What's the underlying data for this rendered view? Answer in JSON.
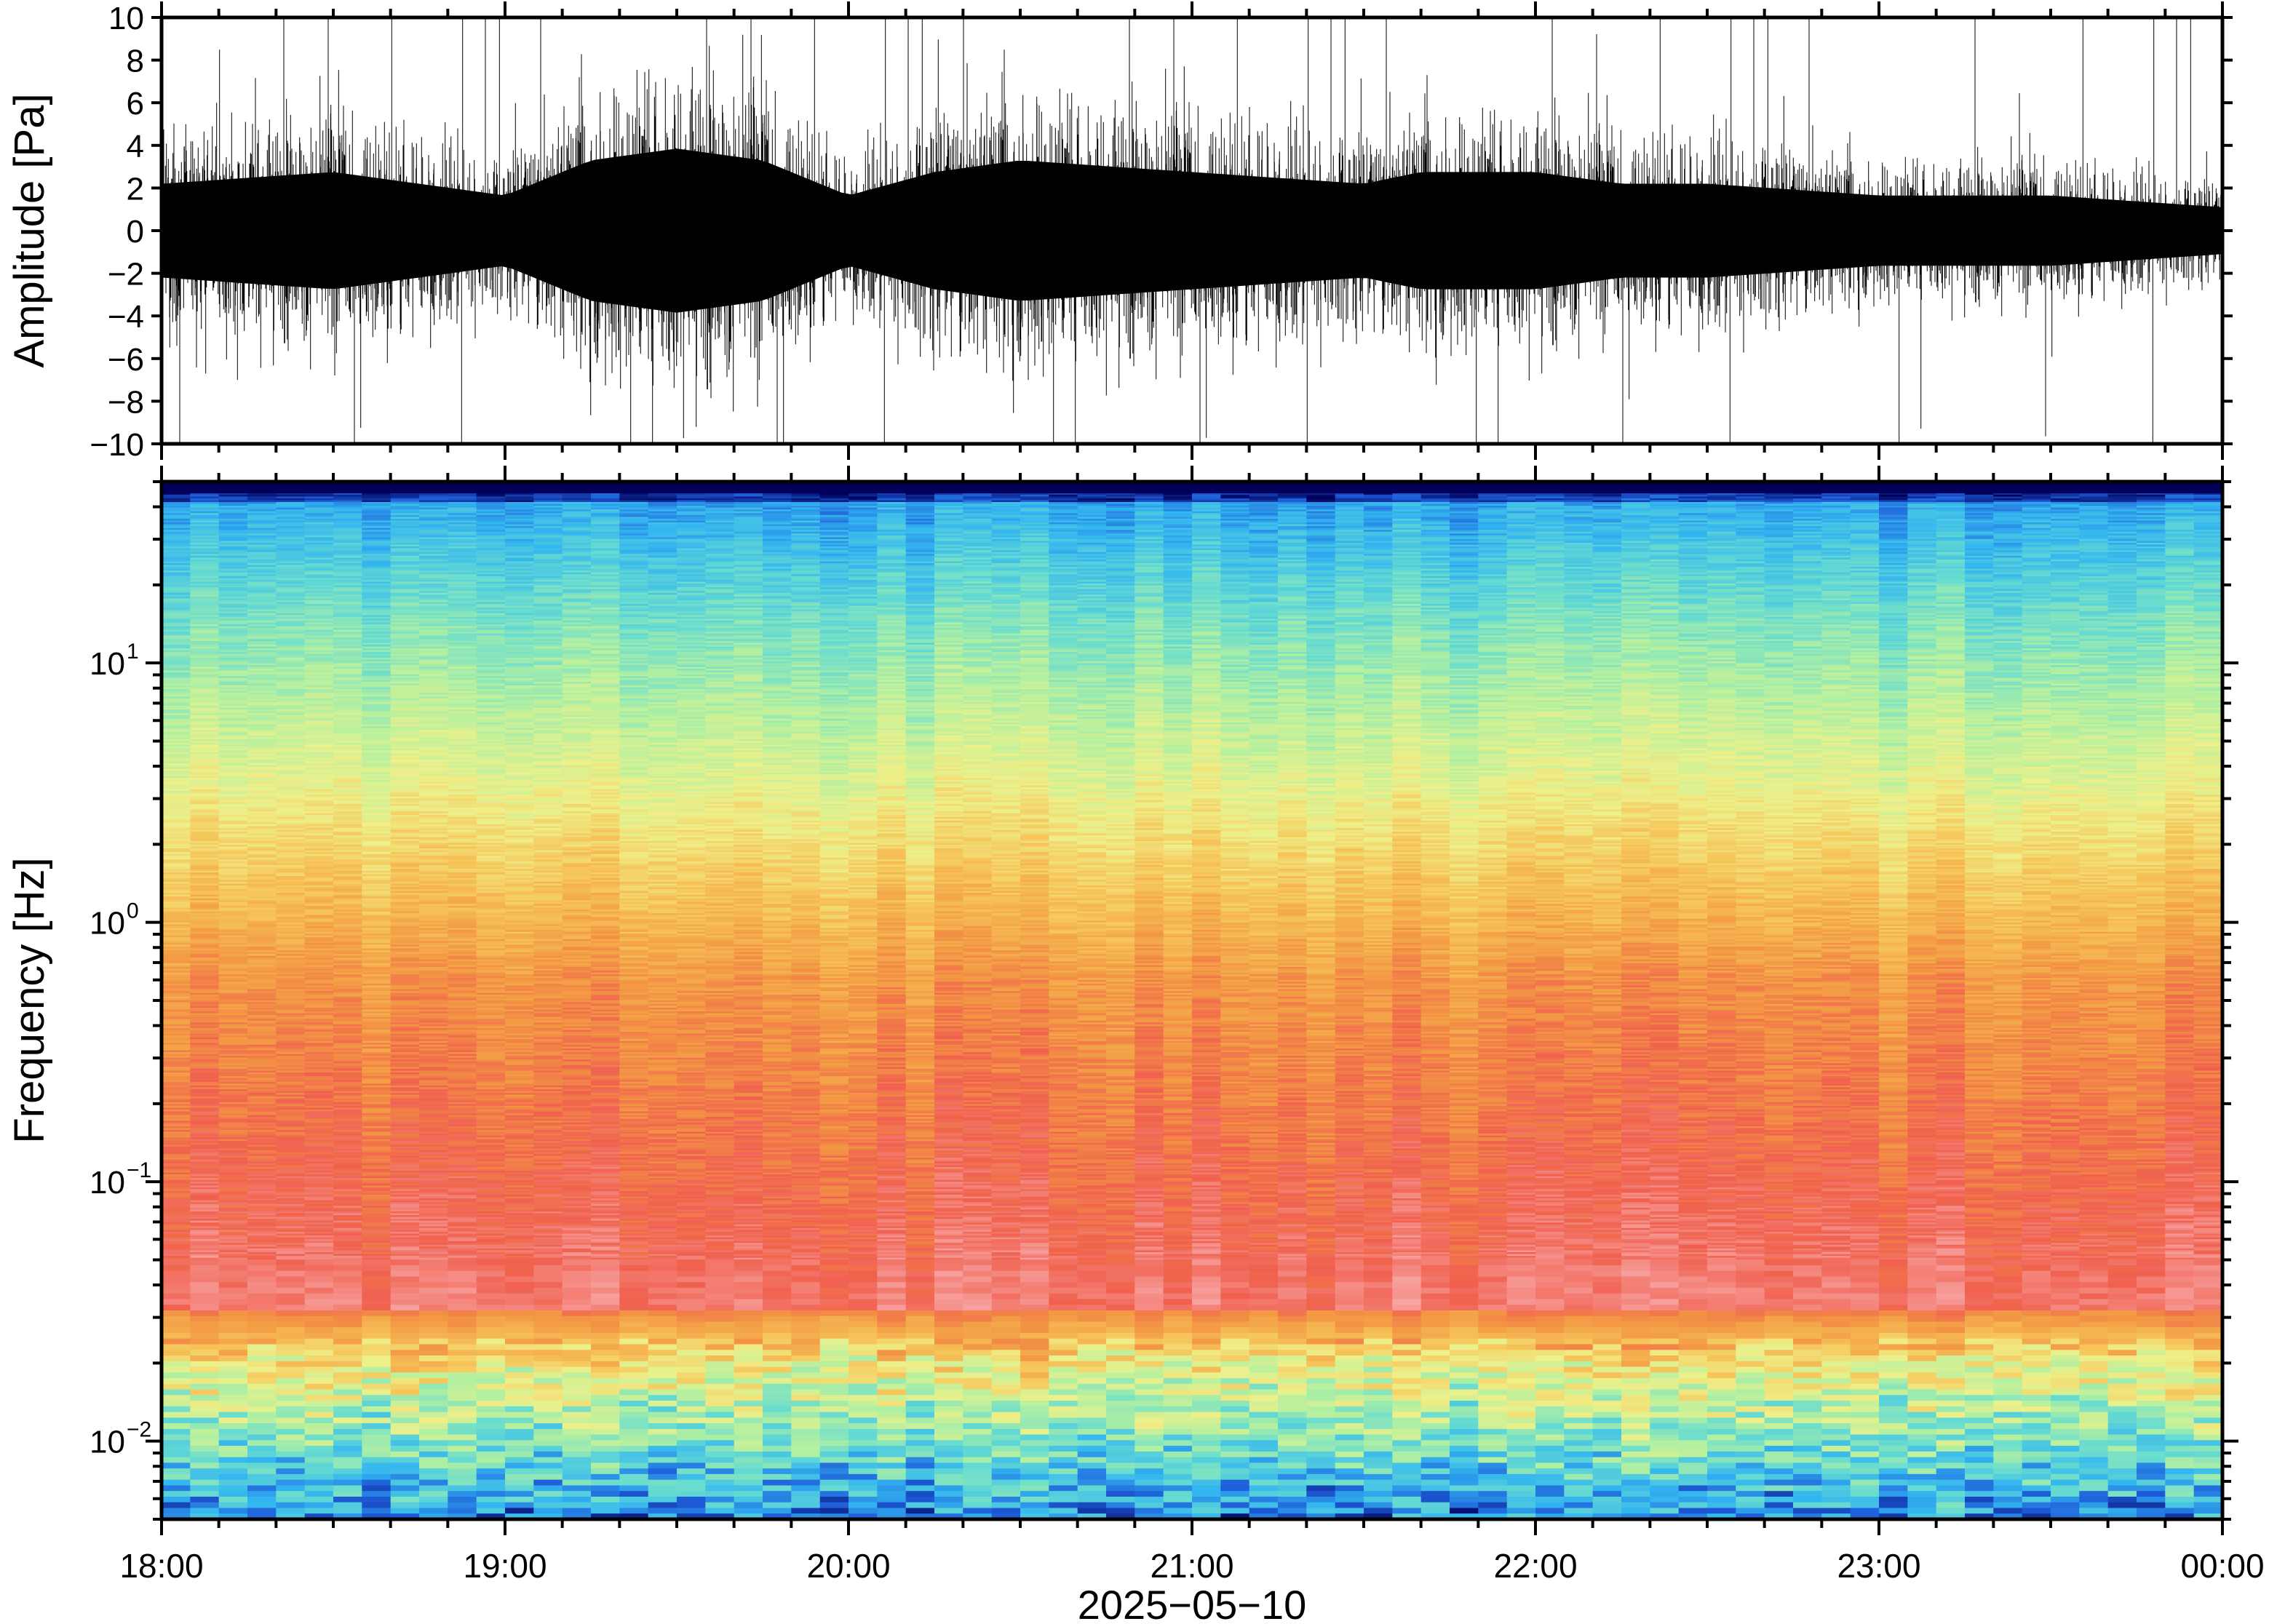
{
  "chart_data": [
    {
      "type": "line",
      "ylabel": "Amplitude [Pa]",
      "ylim": [
        -10,
        10
      ],
      "yticks": [
        -10,
        -8,
        -6,
        -4,
        -2,
        0,
        2,
        4,
        6,
        8,
        10
      ],
      "ytick_labels": [
        "−10",
        "−8",
        "−6",
        "−4",
        "−2",
        "0",
        "2",
        "4",
        "6",
        "8",
        "10"
      ],
      "x_range": [
        "2025-05-10 18:00",
        "2025-05-11 00:00"
      ],
      "series": [
        {
          "x": [
            "18:00",
            "18:30",
            "19:00",
            "19:15",
            "19:30",
            "19:45",
            "20:00",
            "20:15",
            "20:30",
            "21:00",
            "21:30",
            "21:40",
            "22:00",
            "22:15",
            "22:30",
            "23:00",
            "23:30",
            "00:00"
          ],
          "envelope_pa": [
            4,
            5,
            3,
            6,
            7,
            6,
            3,
            5,
            6,
            5,
            4,
            5,
            5,
            4,
            4,
            3,
            3,
            2
          ]
        }
      ],
      "grid": false
    },
    {
      "type": "heatmap",
      "ylabel": "Frequency [Hz]",
      "yscale": "log",
      "ylim": [
        0.005,
        50
      ],
      "yticks": [
        0.01,
        0.1,
        1,
        10
      ],
      "ytick_labels": [
        {
          "base": "10",
          "exp": "−2"
        },
        {
          "base": "10",
          "exp": "−1"
        },
        {
          "base": "10",
          "exp": "0"
        },
        {
          "base": "10",
          "exp": "1"
        }
      ],
      "colormap": [
        "#00005a",
        "#1e5bd8",
        "#33b5f0",
        "#68dcd0",
        "#b4f0a0",
        "#eef08a",
        "#f6c55a",
        "#f39a44",
        "#f0604e",
        "#f8a8a8"
      ],
      "x_range": [
        "2025-05-10 18:00",
        "2025-05-11 00:00"
      ],
      "grid": false
    }
  ],
  "xaxis": {
    "tick_labels": [
      "18:00",
      "19:00",
      "20:00",
      "21:00",
      "22:00",
      "23:00",
      "00:00"
    ],
    "date_label": "2025−05−10"
  }
}
